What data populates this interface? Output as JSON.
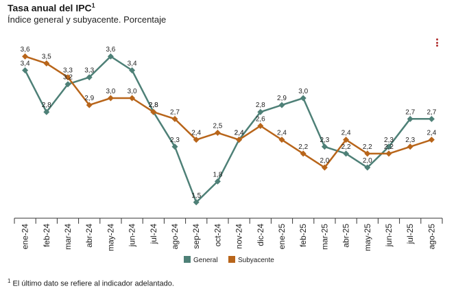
{
  "header": {
    "title": "Tasa anual del IPC",
    "title_sup": "1",
    "subtitle": "Índice general y subyacente. Porcentaje"
  },
  "menu": {
    "icon": "vertical-dots-icon"
  },
  "footnote": {
    "marker": "1",
    "text": "El último dato se refiere al indicador adelantado."
  },
  "colors": {
    "general": "#4e8077",
    "subyacente": "#b8651a",
    "axis": "#333333"
  },
  "chart_data": {
    "type": "line",
    "title": "Tasa anual del IPC",
    "subtitle": "Índice general y subyacente. Porcentaje",
    "categories": [
      "ene-24",
      "feb-24",
      "mar-24",
      "abr-24",
      "may-24",
      "jun-24",
      "jul-24",
      "ago-24",
      "sep-24",
      "oct-24",
      "nov-24",
      "dic-24",
      "ene-25",
      "feb-25",
      "mar-25",
      "abr-25",
      "may-25",
      "jun-25",
      "jul-25",
      "ago-25"
    ],
    "series": [
      {
        "name": "General",
        "color": "#4e8077",
        "values": [
          3.4,
          2.8,
          3.2,
          3.3,
          3.6,
          3.4,
          2.8,
          2.3,
          1.5,
          1.8,
          2.4,
          2.8,
          2.9,
          3.0,
          2.3,
          2.2,
          2.0,
          2.3,
          2.7,
          2.7
        ]
      },
      {
        "name": "Subyacente",
        "color": "#b8651a",
        "values": [
          3.6,
          3.5,
          3.3,
          2.9,
          3.0,
          3.0,
          2.8,
          2.7,
          2.4,
          2.5,
          2.4,
          2.6,
          2.4,
          2.2,
          2.0,
          2.4,
          2.2,
          2.2,
          2.3,
          2.4
        ]
      }
    ],
    "ylim": [
      1.3,
      3.8
    ],
    "grid": false,
    "legend": "bottom-center",
    "xlabel": "",
    "ylabel": ""
  }
}
